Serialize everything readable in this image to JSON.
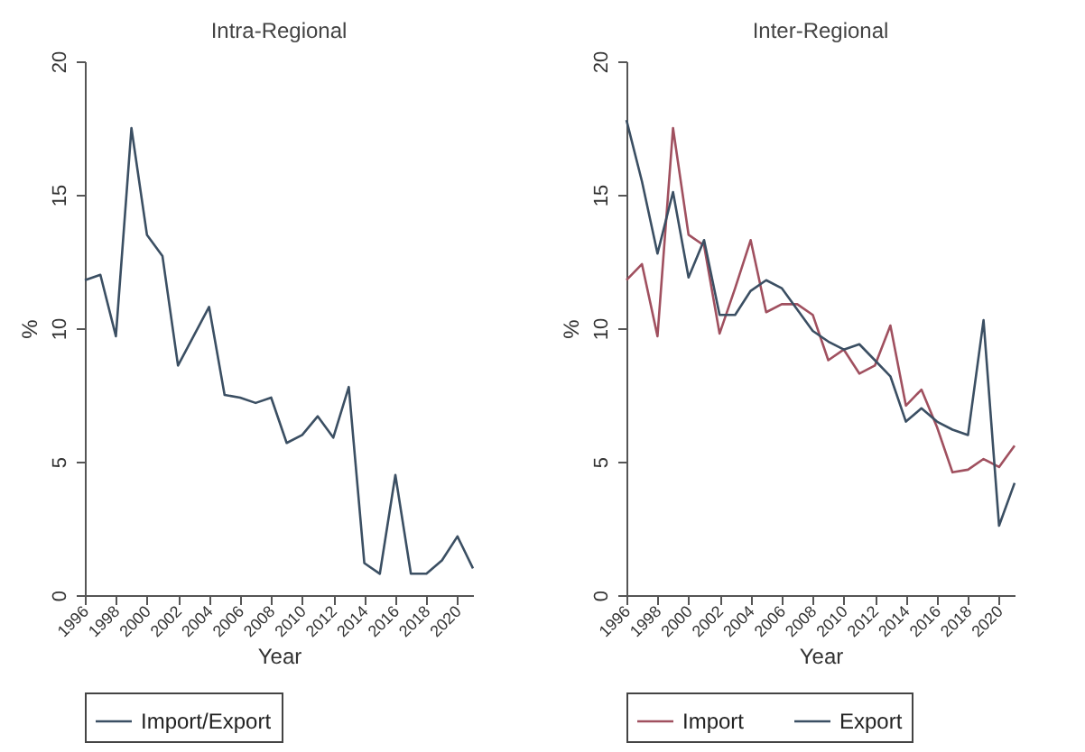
{
  "chart_data": [
    {
      "type": "line",
      "title": "Intra-Regional",
      "xlabel": "Year",
      "ylabel": "%",
      "x": [
        1996,
        1997,
        1998,
        1999,
        2000,
        2001,
        2002,
        2003,
        2004,
        2005,
        2006,
        2007,
        2008,
        2009,
        2010,
        2011,
        2012,
        2013,
        2014,
        2015,
        2016,
        2017,
        2018,
        2019,
        2020,
        2021
      ],
      "series": [
        {
          "name": "Import/Export",
          "color": "#3b4f63",
          "values": [
            11.8,
            12.0,
            9.7,
            17.5,
            13.5,
            12.7,
            8.6,
            9.7,
            10.8,
            7.5,
            7.4,
            7.2,
            7.4,
            5.7,
            6.0,
            6.7,
            5.9,
            7.8,
            1.2,
            0.8,
            4.5,
            0.8,
            0.8,
            1.3,
            2.2,
            1.0
          ]
        }
      ],
      "xlim": [
        1996,
        2021
      ],
      "xticks": [
        1996,
        1998,
        2000,
        2002,
        2004,
        2006,
        2008,
        2010,
        2012,
        2014,
        2016,
        2018,
        2020
      ],
      "ylim": [
        0,
        20
      ],
      "yticks": [
        0,
        5,
        10,
        15,
        20
      ],
      "grid": false,
      "legend": "bottom",
      "line_style": "solid"
    },
    {
      "type": "line",
      "title": "Inter-Regional",
      "xlabel": "Year",
      "ylabel": "%",
      "x": [
        1996,
        1997,
        1998,
        1999,
        2000,
        2001,
        2002,
        2003,
        2004,
        2005,
        2006,
        2007,
        2008,
        2009,
        2010,
        2011,
        2012,
        2013,
        2014,
        2015,
        2016,
        2017,
        2018,
        2019,
        2020,
        2021
      ],
      "series": [
        {
          "name": "Import",
          "color": "#a0505f",
          "values": [
            11.8,
            12.4,
            9.7,
            17.5,
            13.5,
            13.1,
            9.8,
            11.5,
            13.3,
            10.6,
            10.9,
            10.9,
            10.5,
            8.8,
            9.2,
            8.3,
            8.6,
            10.1,
            7.1,
            7.7,
            6.3,
            4.6,
            4.7,
            5.1,
            4.8,
            5.6
          ]
        },
        {
          "name": "Export",
          "color": "#3b4f63",
          "values": [
            17.8,
            15.5,
            12.8,
            15.1,
            11.9,
            13.3,
            10.5,
            10.5,
            11.4,
            11.8,
            11.5,
            10.7,
            9.9,
            9.5,
            9.2,
            9.4,
            8.8,
            8.2,
            6.5,
            7.0,
            6.5,
            6.2,
            6.0,
            10.3,
            2.6,
            4.2
          ]
        }
      ],
      "xlim": [
        1996,
        2021
      ],
      "xticks": [
        1996,
        1998,
        2000,
        2002,
        2004,
        2006,
        2008,
        2010,
        2012,
        2014,
        2016,
        2018,
        2020
      ],
      "ylim": [
        0,
        20
      ],
      "yticks": [
        0,
        5,
        10,
        15,
        20
      ],
      "grid": false,
      "legend": "bottom",
      "line_style": "solid"
    }
  ]
}
